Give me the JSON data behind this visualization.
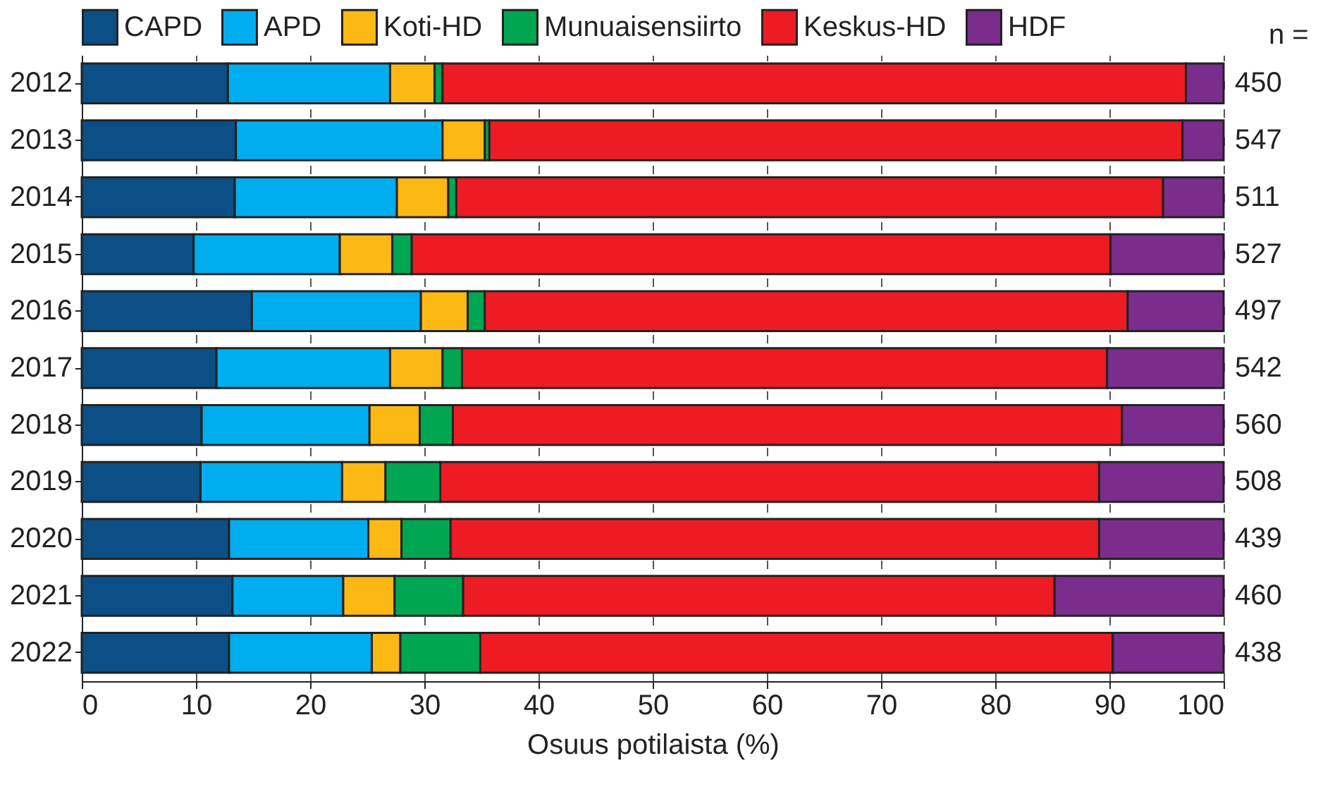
{
  "chart_data": {
    "type": "bar",
    "orientation": "horizontal",
    "stacked": true,
    "xlabel": "Osuus potilaista (%)",
    "categories": [
      "2012",
      "2013",
      "2014",
      "2015",
      "2016",
      "2017",
      "2018",
      "2019",
      "2020",
      "2021",
      "2022"
    ],
    "series": [
      {
        "name": "CAPD",
        "color": "#0b4f86",
        "values": [
          12.8,
          13.5,
          13.4,
          9.8,
          14.9,
          11.8,
          10.5,
          10.4,
          12.9,
          13.2,
          12.9
        ]
      },
      {
        "name": "APD",
        "color": "#00aeef",
        "values": [
          14.2,
          18.1,
          14.2,
          12.8,
          14.8,
          15.2,
          14.7,
          12.4,
          12.2,
          9.7,
          12.5
        ]
      },
      {
        "name": "Koti-HD",
        "color": "#fdb913",
        "values": [
          3.9,
          3.7,
          4.5,
          4.6,
          4.1,
          4.6,
          4.4,
          3.8,
          2.9,
          4.5,
          2.5
        ]
      },
      {
        "name": "Munuaisensiirto",
        "color": "#00a651",
        "values": [
          0.7,
          0.4,
          0.7,
          1.7,
          1.5,
          1.7,
          2.9,
          4.8,
          4.3,
          6.0,
          7.0
        ]
      },
      {
        "name": "Keskus-HD",
        "color": "#ed1c24",
        "values": [
          65.1,
          60.7,
          61.9,
          61.2,
          56.3,
          56.5,
          58.6,
          57.7,
          56.8,
          51.8,
          55.4
        ]
      },
      {
        "name": "HDF",
        "color": "#7b2d8e",
        "values": [
          3.3,
          3.6,
          5.3,
          9.9,
          8.4,
          10.2,
          8.9,
          10.9,
          10.9,
          14.8,
          9.7
        ]
      }
    ],
    "annotations": [
      "n =",
      "450",
      "547",
      "511",
      "527",
      "497",
      "542",
      "560",
      "508",
      "439",
      "460",
      "438"
    ],
    "xlim": [
      0,
      100
    ],
    "xticks": [
      0,
      10,
      20,
      30,
      40,
      50,
      60,
      70,
      80,
      90,
      100
    ],
    "grid": "x",
    "legend": "top"
  }
}
